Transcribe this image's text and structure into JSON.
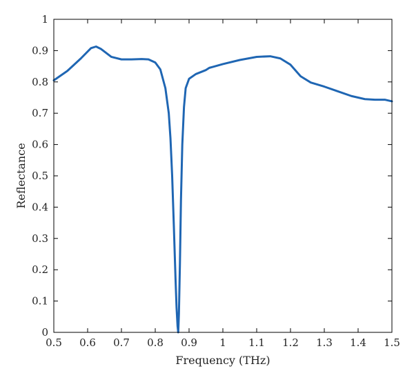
{
  "chart_data": {
    "type": "line",
    "title": "",
    "xlabel": "Frequency (THz)",
    "ylabel": "Reflectance",
    "xlim": [
      0.5,
      1.5
    ],
    "ylim": [
      0,
      1
    ],
    "xticks": [
      0.5,
      0.6,
      0.7,
      0.8,
      0.9,
      1.0,
      1.1,
      1.2,
      1.3,
      1.4,
      1.5
    ],
    "xtick_labels": [
      "0.5",
      "0.6",
      "0.7",
      "0.8",
      "0.9",
      "1",
      "1.1",
      "1.2",
      "1.3",
      "1.4",
      "1.5"
    ],
    "yticks": [
      0,
      0.1,
      0.2,
      0.3,
      0.4,
      0.5,
      0.6,
      0.7,
      0.8,
      0.9,
      1.0
    ],
    "ytick_labels": [
      "0",
      "0.1",
      "0.2",
      "0.3",
      "0.4",
      "0.5",
      "0.6",
      "0.7",
      "0.8",
      "0.9",
      "1"
    ],
    "grid": false,
    "legend": "none",
    "series": [
      {
        "color": "#1f66b3",
        "x": [
          0.5,
          0.54,
          0.58,
          0.61,
          0.625,
          0.64,
          0.67,
          0.7,
          0.73,
          0.76,
          0.78,
          0.8,
          0.815,
          0.83,
          0.84,
          0.845,
          0.85,
          0.855,
          0.86,
          0.863,
          0.866,
          0.868,
          0.87,
          0.873,
          0.876,
          0.88,
          0.885,
          0.89,
          0.9,
          0.92,
          0.95,
          0.96,
          0.97,
          1.0,
          1.05,
          1.1,
          1.14,
          1.17,
          1.2,
          1.23,
          1.26,
          1.3,
          1.34,
          1.38,
          1.42,
          1.45,
          1.48,
          1.5
        ],
        "y": [
          0.805,
          0.835,
          0.875,
          0.908,
          0.913,
          0.905,
          0.88,
          0.872,
          0.872,
          0.873,
          0.872,
          0.862,
          0.84,
          0.78,
          0.7,
          0.62,
          0.5,
          0.34,
          0.17,
          0.08,
          0.02,
          0.0,
          0.06,
          0.22,
          0.42,
          0.6,
          0.72,
          0.78,
          0.81,
          0.825,
          0.838,
          0.845,
          0.848,
          0.857,
          0.87,
          0.88,
          0.882,
          0.875,
          0.855,
          0.818,
          0.798,
          0.785,
          0.77,
          0.755,
          0.745,
          0.743,
          0.743,
          0.738
        ]
      }
    ]
  }
}
